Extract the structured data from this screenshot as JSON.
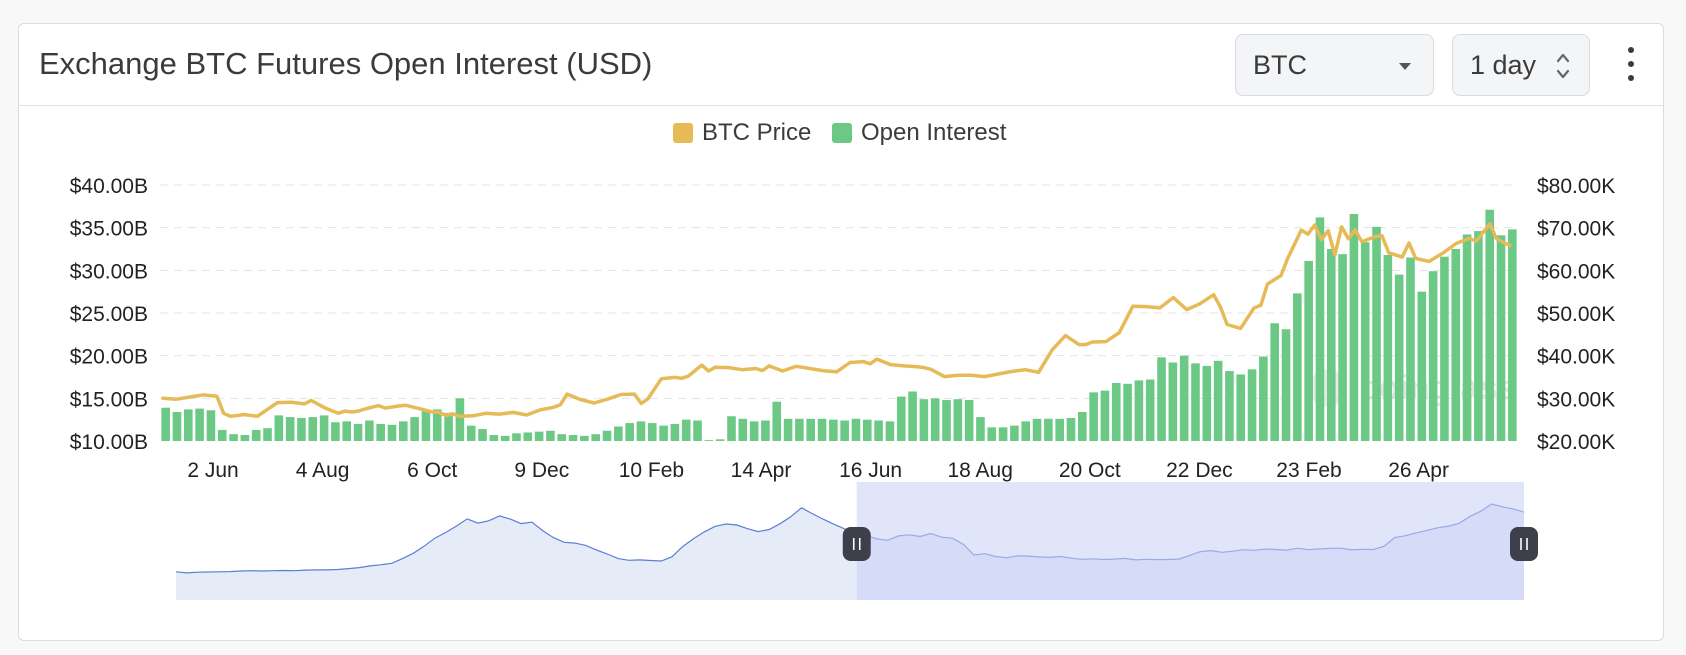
{
  "header": {
    "title": "Exchange BTC Futures Open Interest (USD)",
    "coin_select": "BTC",
    "interval_select": "1 day",
    "menu_icon": "kebab-menu-icon"
  },
  "legend": [
    {
      "label": "BTC Price",
      "color": "#e6bb57"
    },
    {
      "label": "Open Interest",
      "color": "#6cc985"
    }
  ],
  "watermark": "coinglass",
  "chart_data": {
    "type": "bar",
    "x_ticks": [
      "2 Jun",
      "4 Aug",
      "6 Oct",
      "9 Dec",
      "10 Feb",
      "14 Apr",
      "16 Jun",
      "18 Aug",
      "20 Oct",
      "22 Dec",
      "23 Feb",
      "26 Apr"
    ],
    "y_left_ticks": [
      "$10.00B",
      "$15.00B",
      "$20.00B",
      "$25.00B",
      "$30.00B",
      "$35.00B",
      "$40.00B"
    ],
    "y_right_ticks": [
      "$20.00K",
      "$30.00K",
      "$40.00K",
      "$50.00K",
      "$60.00K",
      "$70.00K",
      "$80.00K"
    ],
    "y_left_range": [
      10,
      40
    ],
    "y_right_range": [
      20000,
      80000
    ],
    "grid": true,
    "legend_position": "top",
    "series": [
      {
        "name": "Open Interest",
        "axis": "left",
        "unit": "USD billions",
        "color": "#6cc985",
        "values": [
          13.9,
          13.4,
          13.7,
          13.8,
          13.6,
          11.3,
          10.8,
          10.7,
          11.3,
          11.5,
          13.0,
          12.8,
          12.7,
          12.8,
          13.0,
          12.2,
          12.3,
          12.0,
          12.4,
          12.0,
          11.9,
          12.3,
          12.8,
          13.5,
          13.7,
          13.3,
          15.0,
          11.8,
          11.4,
          10.7,
          10.6,
          10.9,
          11.0,
          11.1,
          11.2,
          10.8,
          10.7,
          10.6,
          10.8,
          11.2,
          11.7,
          12.1,
          12.3,
          12.1,
          11.8,
          12.0,
          12.5,
          12.4,
          10.1,
          10.2,
          12.9,
          12.6,
          12.3,
          12.4,
          14.6,
          12.6,
          12.6,
          12.6,
          12.6,
          12.5,
          12.4,
          12.6,
          12.5,
          12.4,
          12.3,
          15.2,
          15.8,
          14.9,
          15.0,
          14.8,
          14.9,
          14.8,
          12.8,
          11.6,
          11.6,
          11.8,
          12.3,
          12.6,
          12.6,
          12.6,
          12.7,
          13.4,
          15.7,
          15.9,
          16.8,
          16.7,
          17.1,
          17.2,
          19.8,
          19.2,
          20.0,
          19.1,
          18.8,
          19.4,
          18.2,
          17.8,
          18.4,
          19.9,
          23.8,
          23.1,
          27.3,
          31.1,
          36.2,
          32.5,
          31.9,
          36.6,
          33.3,
          35.1,
          31.8,
          29.5,
          31.5,
          27.5,
          29.9,
          31.6,
          32.5,
          34.2,
          34.6,
          37.1,
          34.1,
          34.8
        ]
      },
      {
        "name": "BTC Price",
        "axis": "right",
        "unit": "USD",
        "color": "#e6bb57",
        "x_fraction": [
          0.0,
          0.01,
          0.03,
          0.04,
          0.045,
          0.05,
          0.054,
          0.06,
          0.07,
          0.085,
          0.095,
          0.105,
          0.11,
          0.12,
          0.13,
          0.135,
          0.14,
          0.145,
          0.15,
          0.16,
          0.165,
          0.175,
          0.18,
          0.19,
          0.2,
          0.205,
          0.21,
          0.215,
          0.22,
          0.23,
          0.24,
          0.245,
          0.25,
          0.26,
          0.27,
          0.28,
          0.29,
          0.295,
          0.3,
          0.31,
          0.32,
          0.33,
          0.34,
          0.35,
          0.355,
          0.36,
          0.37,
          0.38,
          0.385,
          0.39,
          0.4,
          0.405,
          0.41,
          0.42,
          0.43,
          0.44,
          0.445,
          0.45,
          0.46,
          0.47,
          0.48,
          0.49,
          0.5,
          0.51,
          0.52,
          0.525,
          0.53,
          0.54,
          0.55,
          0.56,
          0.565,
          0.57,
          0.58,
          0.59,
          0.6,
          0.61,
          0.62,
          0.63,
          0.64,
          0.65,
          0.66,
          0.67,
          0.68,
          0.685,
          0.69,
          0.7,
          0.71,
          0.72,
          0.73,
          0.74,
          0.75,
          0.76,
          0.77,
          0.78,
          0.785,
          0.79,
          0.8,
          0.805,
          0.81,
          0.815,
          0.82,
          0.83,
          0.835,
          0.84,
          0.845,
          0.85,
          0.855,
          0.86,
          0.865,
          0.87,
          0.875,
          0.88,
          0.885,
          0.89,
          0.9,
          0.905,
          0.91,
          0.92,
          0.925,
          0.93,
          0.94,
          0.95,
          0.96,
          0.97,
          0.975,
          0.98,
          0.985,
          0.99,
          1.0
        ],
        "values": [
          30000,
          29800,
          30800,
          30500,
          26500,
          25800,
          25900,
          26200,
          25800,
          29000,
          29100,
          28700,
          29500,
          27800,
          26500,
          27000,
          26800,
          27000,
          27500,
          28300,
          27700,
          28200,
          28400,
          27600,
          26800,
          26700,
          26000,
          26400,
          25800,
          25900,
          26500,
          26400,
          26300,
          26700,
          26100,
          27300,
          27900,
          28500,
          31000,
          29700,
          28900,
          29800,
          30900,
          31000,
          28800,
          29900,
          34600,
          34900,
          34700,
          35200,
          37800,
          36400,
          37300,
          37200,
          36700,
          37000,
          36500,
          37600,
          36400,
          37500,
          37000,
          36500,
          36200,
          38400,
          38600,
          38100,
          39200,
          37900,
          37600,
          37400,
          37200,
          36800,
          35100,
          35400,
          35400,
          35100,
          35700,
          36300,
          36700,
          36100,
          41300,
          44700,
          42600,
          42600,
          43200,
          43300,
          45400,
          51600,
          51500,
          51200,
          53600,
          50800,
          52200,
          54300,
          51400,
          47300,
          46400,
          48800,
          51200,
          51800,
          56800,
          58800,
          62800,
          66100,
          69400,
          68500,
          70600,
          67200,
          69300,
          63600,
          70200,
          67400,
          69500,
          66700,
          67900,
          68100,
          64100,
          63100,
          66400,
          62800,
          62100,
          64000,
          66300,
          67500,
          66800,
          68900,
          70900,
          67400,
          65800
        ]
      }
    ]
  },
  "navigator": {
    "type": "area",
    "series_name": "Open Interest",
    "selected_range": [
      0.505,
      1.0
    ],
    "values": [
      9.5,
      9.0,
      9.3,
      9.4,
      9.5,
      9.6,
      9.9,
      10.0,
      9.9,
      10.0,
      10.1,
      10.0,
      10.3,
      10.4,
      10.4,
      10.6,
      11.0,
      11.5,
      12.3,
      12.8,
      13.5,
      15.7,
      18.2,
      21.5,
      25.3,
      28.0,
      31.0,
      34.4,
      32.4,
      33.5,
      35.8,
      34.3,
      32.2,
      32.9,
      28.9,
      25.6,
      23.4,
      23.0,
      21.9,
      19.7,
      17.9,
      15.7,
      14.9,
      15.1,
      14.8,
      14.6,
      16.6,
      21.4,
      25.1,
      28.3,
      30.9,
      32.0,
      31.5,
      29.8,
      28.4,
      29.4,
      32.1,
      35.4,
      39.6,
      36.9,
      34.3,
      31.9,
      29.7,
      28.4,
      26.6,
      25.0,
      24.3,
      26.4,
      26.9,
      26.1,
      27.5,
      25.8,
      25.3,
      22.5,
      17.4,
      18.0,
      16.7,
      16.1,
      17.0,
      16.9,
      16.5,
      16.3,
      16.7,
      15.9,
      15.4,
      15.6,
      15.3,
      15.5,
      15.8,
      15.1,
      15.4,
      15.2,
      15.3,
      15.5,
      17.2,
      19.0,
      19.5,
      18.7,
      19.2,
      19.9,
      19.6,
      20.2,
      20.0,
      19.7,
      20.6,
      19.9,
      20.3,
      20.5,
      20.6,
      19.8,
      20.1,
      20.0,
      21.4,
      25.6,
      26.5,
      27.8,
      29.0,
      30.2,
      31.0,
      32.3,
      35.6,
      38.0,
      41.4,
      40.1,
      39.1,
      37.6
    ]
  }
}
